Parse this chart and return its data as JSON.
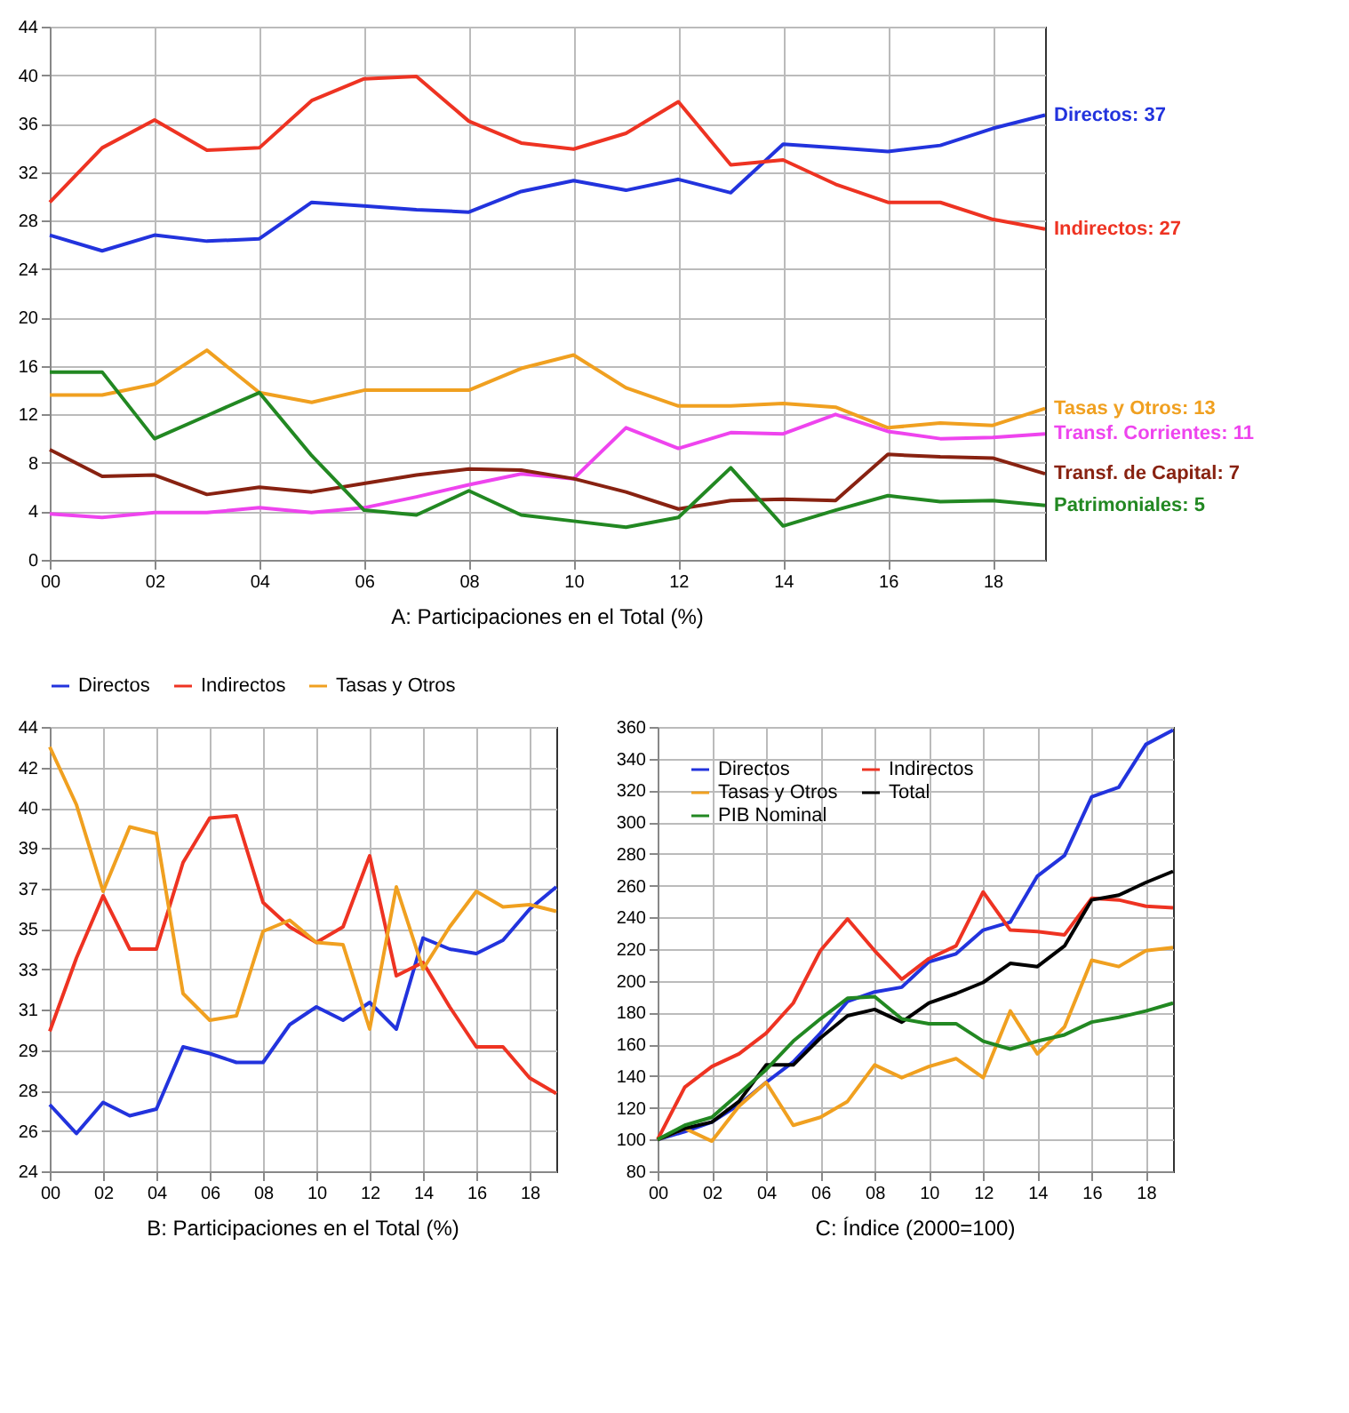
{
  "chart_data": [
    {
      "type": "line",
      "title": "A: Participaciones en el Total (%)",
      "x": [
        2000,
        2001,
        2002,
        2003,
        2004,
        2005,
        2006,
        2007,
        2008,
        2009,
        2010,
        2011,
        2012,
        2013,
        2014,
        2015,
        2016,
        2017,
        2018,
        2019
      ],
      "series": [
        {
          "name": "Directos: 37",
          "color": "#2233dd",
          "values": [
            26.8,
            25.5,
            26.8,
            26.3,
            26.5,
            29.5,
            29.2,
            28.9,
            28.7,
            30.4,
            31.3,
            30.5,
            31.4,
            30.3,
            34.3,
            34.0,
            33.7,
            34.2,
            35.6,
            36.7
          ]
        },
        {
          "name": "Indirectos: 27",
          "color": "#ee3322",
          "values": [
            29.5,
            34.0,
            36.3,
            33.8,
            34.0,
            37.9,
            39.7,
            39.9,
            36.2,
            34.4,
            33.9,
            35.2,
            37.8,
            32.6,
            33.0,
            31.0,
            29.5,
            29.5,
            28.1,
            27.3
          ]
        },
        {
          "name": "Tasas y Otros: 13",
          "color": "#f0a020",
          "values": [
            13.6,
            13.6,
            14.5,
            17.3,
            13.8,
            13.0,
            14.0,
            14.0,
            14.0,
            15.8,
            16.9,
            14.2,
            12.7,
            12.7,
            12.9,
            12.6,
            10.9,
            11.3,
            11.1,
            12.5
          ]
        },
        {
          "name": "Transf. Corrientes: 11",
          "color": "#ee44ee",
          "values": [
            3.8,
            3.5,
            3.9,
            3.9,
            4.3,
            3.9,
            4.3,
            5.2,
            6.2,
            7.1,
            6.7,
            10.9,
            9.2,
            10.5,
            10.4,
            12.0,
            10.6,
            10.0,
            10.1,
            10.4
          ]
        },
        {
          "name": "Transf. de Capital: 7",
          "color": "#882211",
          "values": [
            9.1,
            6.9,
            7.0,
            5.4,
            6.0,
            5.6,
            6.3,
            7.0,
            7.5,
            7.4,
            6.7,
            5.6,
            4.2,
            4.9,
            5.0,
            4.9,
            8.7,
            8.5,
            8.4,
            7.1
          ]
        },
        {
          "name": "Patrimoniales: 5",
          "color": "#228822",
          "values": [
            15.5,
            15.5,
            10.0,
            11.9,
            13.8,
            8.6,
            4.1,
            3.7,
            5.7,
            3.7,
            3.2,
            2.7,
            3.5,
            7.6,
            2.8,
            4.1,
            5.3,
            4.8,
            4.9,
            4.5
          ]
        }
      ],
      "xlim": [
        2000,
        2019
      ],
      "xticks": [
        {
          "value": 2000,
          "label": "00"
        },
        {
          "value": 2002,
          "label": "02"
        },
        {
          "value": 2004,
          "label": "04"
        },
        {
          "value": 2006,
          "label": "06"
        },
        {
          "value": 2008,
          "label": "08"
        },
        {
          "value": 2010,
          "label": "10"
        },
        {
          "value": 2012,
          "label": "12"
        },
        {
          "value": 2014,
          "label": "14"
        },
        {
          "value": 2016,
          "label": "16"
        },
        {
          "value": 2018,
          "label": "18"
        }
      ],
      "ylim": [
        0,
        44
      ],
      "yticks": [
        0,
        4,
        8,
        12,
        16,
        20,
        24,
        28,
        32,
        36,
        40,
        44
      ],
      "grid": true,
      "legend": false
    },
    {
      "type": "line",
      "title": "B: Participaciones en el Total (%)",
      "x": [
        2000,
        2001,
        2002,
        2003,
        2004,
        2005,
        2006,
        2007,
        2008,
        2009,
        2010,
        2011,
        2012,
        2013,
        2014,
        2015,
        2016,
        2017,
        2018,
        2019
      ],
      "series": [
        {
          "name": "Directos",
          "color": "#2233dd",
          "values": [
            27.0,
            25.7,
            27.1,
            26.5,
            26.8,
            29.6,
            29.3,
            28.9,
            28.9,
            30.6,
            31.4,
            30.8,
            31.6,
            30.4,
            34.5,
            34.0,
            33.8,
            34.4,
            35.8,
            36.8
          ]
        },
        {
          "name": "Indirectos",
          "color": "#ee3322",
          "values": [
            30.3,
            33.6,
            36.4,
            34.0,
            34.0,
            37.9,
            39.9,
            40.0,
            36.1,
            35.0,
            34.3,
            35.0,
            38.2,
            32.8,
            33.4,
            31.4,
            29.6,
            29.6,
            28.2,
            27.5
          ]
        },
        {
          "name": "Tasas y Otros",
          "color": "#f0a020",
          "values": [
            43.1,
            40.5,
            36.6,
            39.5,
            39.2,
            32.0,
            30.8,
            31.0,
            34.8,
            35.3,
            34.3,
            34.2,
            30.4,
            36.8,
            33.1,
            35.0,
            36.6,
            35.9,
            36.0,
            35.7
          ]
        }
      ],
      "xlim": [
        2000,
        2019
      ],
      "xticks": [
        {
          "value": 2000,
          "label": "00"
        },
        {
          "value": 2002,
          "label": "02"
        },
        {
          "value": 2004,
          "label": "04"
        },
        {
          "value": 2006,
          "label": "06"
        },
        {
          "value": 2008,
          "label": "08"
        },
        {
          "value": 2010,
          "label": "10"
        },
        {
          "value": 2012,
          "label": "12"
        },
        {
          "value": 2014,
          "label": "14"
        },
        {
          "value": 2016,
          "label": "16"
        },
        {
          "value": 2018,
          "label": "18"
        }
      ],
      "ylim": [
        24,
        44
      ],
      "yticks": [
        24,
        {
          "value": 25.82,
          "label": "26"
        },
        {
          "value": 27.64,
          "label": "28"
        },
        {
          "value": 29.45,
          "label": "29"
        },
        {
          "value": 31.27,
          "label": "31"
        },
        {
          "value": 33.09,
          "label": "33"
        },
        {
          "value": 34.91,
          "label": "35"
        },
        {
          "value": 36.73,
          "label": "37"
        },
        {
          "value": 38.55,
          "label": "39"
        },
        {
          "value": 40.36,
          "label": "40"
        },
        {
          "value": 42.18,
          "label": "42"
        },
        44
      ],
      "grid": true,
      "legend": "top"
    },
    {
      "type": "line",
      "title": "C: Índice (2000=100)",
      "x": [
        2000,
        2001,
        2002,
        2003,
        2004,
        2005,
        2006,
        2007,
        2008,
        2009,
        2010,
        2011,
        2012,
        2013,
        2014,
        2015,
        2016,
        2017,
        2018,
        2019
      ],
      "series": [
        {
          "name": "Directos",
          "color": "#2233dd",
          "values": [
            100,
            105,
            111,
            122,
            136,
            149,
            167,
            187,
            193,
            196,
            212,
            217,
            232,
            237,
            266,
            279,
            316,
            322,
            349,
            358
          ]
        },
        {
          "name": "Indirectos",
          "color": "#ee3322",
          "values": [
            100,
            133,
            146,
            154,
            167,
            186,
            219,
            239,
            219,
            201,
            214,
            222,
            256,
            232,
            231,
            229,
            252,
            251,
            247,
            246
          ]
        },
        {
          "name": "Tasas y Otros",
          "color": "#f0a020",
          "values": [
            100,
            107,
            99,
            121,
            136,
            109,
            114,
            124,
            147,
            139,
            146,
            151,
            139,
            181,
            154,
            171,
            213,
            209,
            219,
            221
          ]
        },
        {
          "name": "Total",
          "color": "#000000",
          "values": [
            100,
            107,
            111,
            124,
            147,
            147,
            164,
            178,
            182,
            174,
            186,
            192,
            199,
            211,
            209,
            222,
            251,
            254,
            262,
            269
          ]
        },
        {
          "name": "PIB Nominal",
          "color": "#228822",
          "values": [
            100,
            109,
            114,
            129,
            144,
            162,
            176,
            189,
            190,
            176,
            173,
            173,
            162,
            157,
            162,
            166,
            174,
            177,
            181,
            186
          ]
        }
      ],
      "xlim": [
        2000,
        2019
      ],
      "xticks": [
        {
          "value": 2000,
          "label": "00"
        },
        {
          "value": 2002,
          "label": "02"
        },
        {
          "value": 2004,
          "label": "04"
        },
        {
          "value": 2006,
          "label": "06"
        },
        {
          "value": 2008,
          "label": "08"
        },
        {
          "value": 2010,
          "label": "10"
        },
        {
          "value": 2012,
          "label": "12"
        },
        {
          "value": 2014,
          "label": "14"
        },
        {
          "value": 2016,
          "label": "16"
        },
        {
          "value": 2018,
          "label": "18"
        }
      ],
      "ylim": [
        80,
        360
      ],
      "yticks": [
        80,
        100,
        120,
        140,
        160,
        180,
        200,
        220,
        240,
        260,
        280,
        300,
        320,
        340,
        360
      ],
      "grid": true,
      "legend": "top left"
    }
  ]
}
